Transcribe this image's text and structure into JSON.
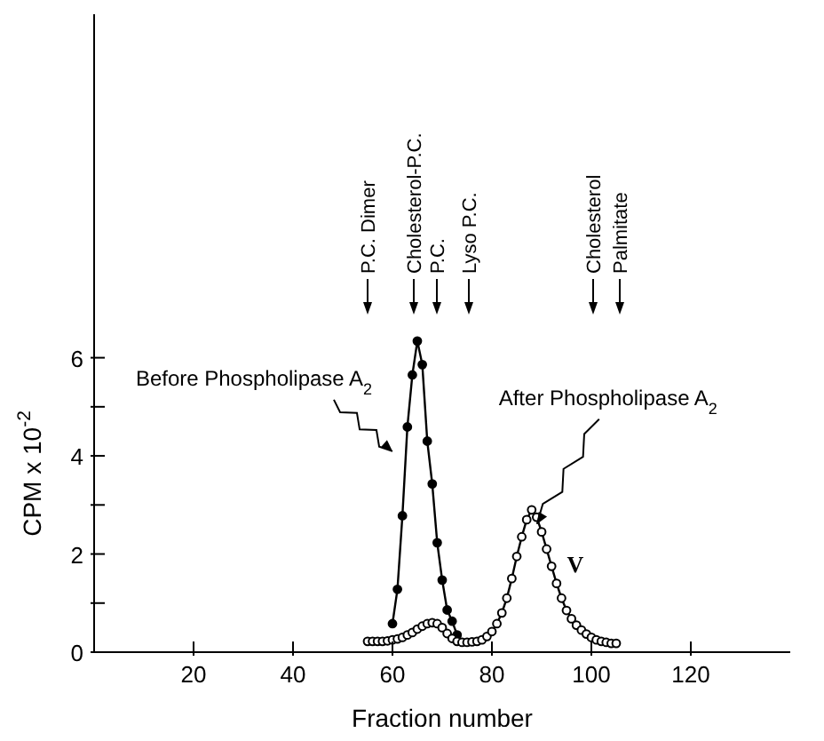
{
  "chart_data": {
    "type": "line",
    "xlabel": "Fraction number",
    "ylabel": "CPM x 10$^{-2}$",
    "xlim": [
      0,
      140
    ],
    "xticks": [
      20,
      40,
      60,
      80,
      100,
      120
    ],
    "ylim": [
      0,
      13
    ],
    "yticks": [
      0,
      {
        "value": 1,
        "label": null
      },
      2,
      {
        "value": 3,
        "label": null
      },
      4,
      {
        "value": 5,
        "label": null
      },
      6
    ],
    "grid": false,
    "legend": false,
    "marker": "circle",
    "line_style": "solid",
    "series": [
      {
        "name": "Before Phospholipase A$_{2}$",
        "color": "#000000",
        "x": [
          60,
          61,
          62,
          63,
          64,
          65,
          66,
          67,
          68,
          69,
          70,
          71,
          72,
          73
        ],
        "values": [
          0.58,
          1.28,
          2.78,
          4.59,
          5.65,
          6.34,
          5.86,
          4.3,
          3.43,
          2.23,
          1.47,
          0.86,
          0.63,
          0.35
        ]
      },
      {
        "name": "After Phospholipase A$_{2}$",
        "color": "#000000",
        "x": [
          55,
          56,
          57,
          58,
          59,
          60,
          61,
          62,
          63,
          64,
          65,
          66,
          67,
          68,
          69,
          70,
          71,
          72,
          73,
          74,
          75,
          76,
          77,
          78,
          79,
          80,
          81,
          82,
          83,
          84,
          85,
          86,
          87,
          88,
          89,
          90,
          91,
          92,
          93,
          94,
          95,
          96,
          97,
          98,
          99,
          100,
          101,
          102,
          103,
          104,
          105
        ],
        "values": [
          0.22,
          0.22,
          0.22,
          0.22,
          0.23,
          0.25,
          0.27,
          0.3,
          0.35,
          0.4,
          0.47,
          0.53,
          0.58,
          0.6,
          0.58,
          0.5,
          0.38,
          0.28,
          0.22,
          0.2,
          0.2,
          0.21,
          0.22,
          0.25,
          0.32,
          0.42,
          0.58,
          0.8,
          1.1,
          1.5,
          1.95,
          2.35,
          2.7,
          2.9,
          2.75,
          2.45,
          2.1,
          1.75,
          1.4,
          1.1,
          0.85,
          0.68,
          0.55,
          0.45,
          0.37,
          0.3,
          0.25,
          0.22,
          0.2,
          0.18,
          0.18
        ]
      }
    ],
    "annotations": [
      "P.C. Dimer",
      "Cholesterol-P.C.",
      "P.C.",
      "Lyso P.C.",
      "Cholesterol",
      "Palmitate",
      "V"
    ]
  }
}
